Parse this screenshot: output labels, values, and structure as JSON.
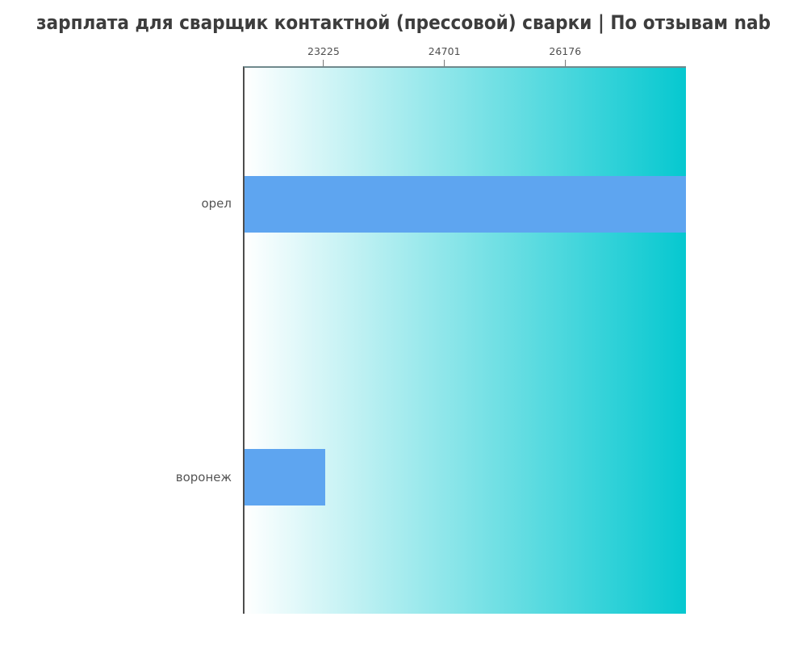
{
  "chart_data": {
    "type": "bar",
    "orientation": "horizontal",
    "title": "зарплата для сварщик контактной (прессовой) сварки | По отзывам nab",
    "categories": [
      "орел",
      "воронеж"
    ],
    "values": [
      27652,
      23225
    ],
    "xticks": [
      23225,
      24701,
      26176
    ],
    "xlim": [
      22240,
      27652
    ],
    "xlabel": "",
    "ylabel": "",
    "grid": false,
    "legend": false,
    "bar_color": "#5ea5f0",
    "plot_bg_gradient": [
      "#ffffff",
      "#06c8d0"
    ],
    "title_color": "#3d3d3d",
    "tick_label_color": "#4f4f4f",
    "category_label_color": "#555555"
  }
}
